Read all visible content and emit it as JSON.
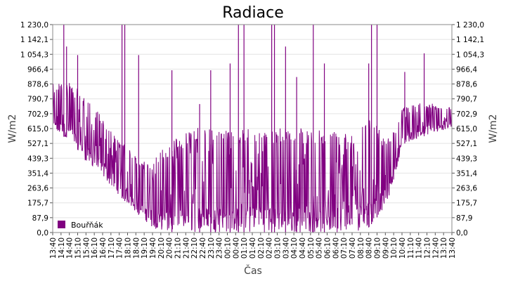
{
  "chart_data": {
    "type": "line",
    "title": "Radiace",
    "xlabel": "Čas",
    "ylabel": "W/m2",
    "ylabel_right": "W/m2",
    "ylim": [
      0,
      1230
    ],
    "yticks": [
      "0,0",
      "87,9",
      "175,7",
      "263,6",
      "351,4",
      "439,3",
      "527,1",
      "615,0",
      "702,9",
      "790,7",
      "878,6",
      "966,4",
      "1 054,3",
      "1 142,1",
      "1 230,0"
    ],
    "ytick_values": [
      0,
      87.9,
      175.7,
      263.6,
      351.4,
      439.3,
      527.1,
      615.0,
      702.9,
      790.7,
      878.6,
      966.4,
      1054.3,
      1142.1,
      1230.0
    ],
    "xticks": [
      "13:40",
      "14:10",
      "14:40",
      "15:10",
      "15:40",
      "16:10",
      "16:40",
      "17:10",
      "17:40",
      "18:10",
      "18:40",
      "19:10",
      "19:40",
      "20:10",
      "20:40",
      "21:10",
      "21:40",
      "22:10",
      "22:40",
      "23:10",
      "23:40",
      "00:10",
      "00:40",
      "01:10",
      "01:40",
      "02:10",
      "02:40",
      "03:10",
      "03:40",
      "04:10",
      "04:40",
      "05:10",
      "05:40",
      "06:10",
      "06:40",
      "07:10",
      "07:40",
      "08:10",
      "08:40",
      "09:10",
      "09:40",
      "10:10",
      "10:40",
      "11:10",
      "11:40",
      "12:10",
      "12:40",
      "13:10",
      "13:40"
    ],
    "grid": true,
    "legend": "bottom-left",
    "series": [
      {
        "name": "Bouřňák",
        "color": "#800080",
        "x_start": "13:40",
        "x_end": "13:40",
        "envelope": [
          {
            "t": "13:40",
            "low": 580,
            "high": 880
          },
          {
            "t": "14:40",
            "low": 560,
            "high": 900
          },
          {
            "t": "15:40",
            "low": 420,
            "high": 800
          },
          {
            "t": "16:40",
            "low": 330,
            "high": 680
          },
          {
            "t": "17:40",
            "low": 220,
            "high": 560
          },
          {
            "t": "18:40",
            "low": 120,
            "high": 450
          },
          {
            "t": "19:40",
            "low": 30,
            "high": 400
          },
          {
            "t": "20:10",
            "low": 5,
            "high": 500
          },
          {
            "t": "22:10",
            "low": 0,
            "high": 620
          },
          {
            "t": "01:10",
            "low": 0,
            "high": 620
          },
          {
            "t": "04:10",
            "low": 0,
            "high": 620
          },
          {
            "t": "06:40",
            "low": 0,
            "high": 600
          },
          {
            "t": "08:10",
            "low": 10,
            "high": 600
          },
          {
            "t": "08:40",
            "low": 30,
            "high": 700
          },
          {
            "t": "09:40",
            "low": 150,
            "high": 560
          },
          {
            "t": "10:10",
            "low": 300,
            "high": 600
          },
          {
            "t": "10:40",
            "low": 520,
            "high": 740
          },
          {
            "t": "11:40",
            "low": 560,
            "high": 780
          },
          {
            "t": "12:40",
            "low": 590,
            "high": 760
          },
          {
            "t": "13:40",
            "low": 620,
            "high": 740
          }
        ],
        "spikes": [
          {
            "t": "14:20",
            "high": 1230
          },
          {
            "t": "14:30",
            "high": 1100
          },
          {
            "t": "15:10",
            "high": 1050
          },
          {
            "t": "17:50",
            "high": 1230
          },
          {
            "t": "18:00",
            "high": 1230
          },
          {
            "t": "18:50",
            "high": 1050
          },
          {
            "t": "20:50",
            "high": 960
          },
          {
            "t": "22:30",
            "high": 760
          },
          {
            "t": "23:10",
            "high": 960
          },
          {
            "t": "00:20",
            "high": 1000
          },
          {
            "t": "00:50",
            "high": 1230
          },
          {
            "t": "01:10",
            "high": 1230
          },
          {
            "t": "02:50",
            "high": 1230
          },
          {
            "t": "03:00",
            "high": 1230
          },
          {
            "t": "03:40",
            "high": 1100
          },
          {
            "t": "04:20",
            "high": 920
          },
          {
            "t": "05:20",
            "high": 1230
          },
          {
            "t": "06:00",
            "high": 1000
          },
          {
            "t": "08:40",
            "high": 1000
          },
          {
            "t": "08:50",
            "high": 1230
          },
          {
            "t": "09:10",
            "high": 1230
          },
          {
            "t": "10:50",
            "high": 950
          },
          {
            "t": "12:00",
            "high": 1060
          }
        ]
      }
    ]
  }
}
